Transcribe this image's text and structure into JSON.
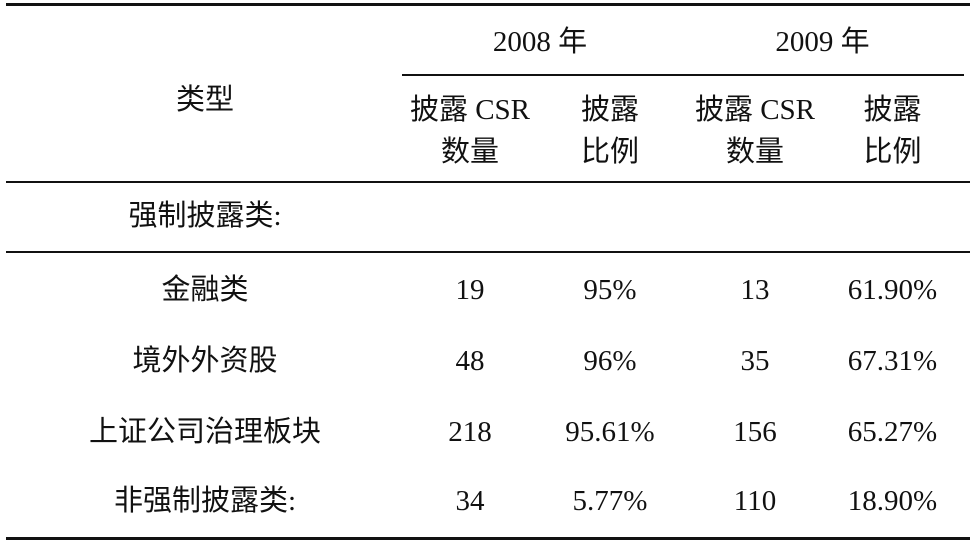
{
  "table": {
    "header": {
      "category": "类型",
      "years": [
        "2008 年",
        "2009 年"
      ],
      "subheaders": [
        "披露 CSR\n数量",
        "披露\n比例",
        "披露 CSR\n数量",
        "披露\n比例"
      ]
    },
    "section": "强制披露类:",
    "rows": [
      [
        "金融类",
        "19",
        "95%",
        "13",
        "61.90%"
      ],
      [
        "境外外资股",
        "48",
        "96%",
        "35",
        "67.31%"
      ],
      [
        "上证公司治理板块",
        "218",
        "95.61%",
        "156",
        "65.27%"
      ],
      [
        "非强制披露类:",
        "34",
        "5.77%",
        "110",
        "18.90%"
      ]
    ]
  }
}
